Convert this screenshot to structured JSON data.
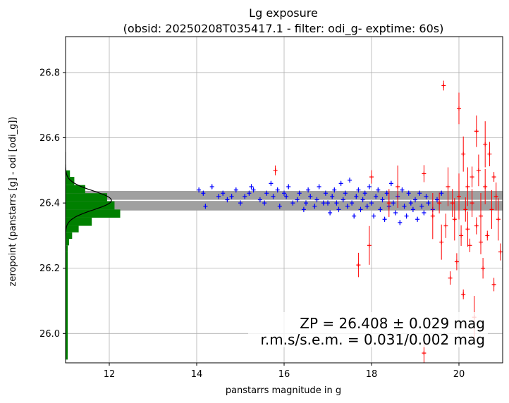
{
  "chart_data": {
    "type": "scatter",
    "title": "Lg exposure",
    "subtitle": "(obsid: 20250208T035417.1 - filter: odi_g- exptime: 60s)",
    "xlabel": "panstarrs magnitude in g",
    "ylabel": "zeropoint (panstarrs [g] - odi [odi_g])",
    "xlim": [
      11.0,
      21.0
    ],
    "ylim": [
      25.91,
      26.91
    ],
    "xticks": [
      "12",
      "14",
      "16",
      "18",
      "20"
    ],
    "xtick_values": [
      12,
      14,
      16,
      18,
      20
    ],
    "yticks": [
      "26.0",
      "26.2",
      "26.4",
      "26.6",
      "26.8"
    ],
    "ytick_values": [
      26.0,
      26.2,
      26.4,
      26.6,
      26.8
    ],
    "grid": true,
    "zeropoint": 26.408,
    "zp_band": [
      26.377,
      26.437
    ],
    "annotation": [
      "ZP = 26.408 ± 0.029 mag",
      "r.m.s/s.e.m. = 0.031/0.002 mag"
    ],
    "colors": {
      "used": "#0000ff",
      "rejected": "#ff0000",
      "histogram": "#008000",
      "band": "#a0a0a0",
      "gaussian": "#000000"
    },
    "histogram": {
      "bin_edges": [
        25.94,
        26.25,
        26.27,
        26.29,
        26.31,
        26.33,
        26.355,
        26.38,
        26.405,
        26.43,
        26.455,
        26.48,
        26.5
      ],
      "counts_mag": [
        11.05,
        11.05,
        11.08,
        11.15,
        11.3,
        11.6,
        12.25,
        12.12,
        11.95,
        11.45,
        11.2,
        11.1
      ]
    },
    "series": [
      {
        "name": "",
        "color": "#0000ff",
        "points": [
          [
            14.05,
            26.44
          ],
          [
            14.15,
            26.43
          ],
          [
            14.2,
            26.39
          ],
          [
            14.35,
            26.45
          ],
          [
            14.5,
            26.42
          ],
          [
            14.6,
            26.43
          ],
          [
            14.7,
            26.41
          ],
          [
            14.8,
            26.42
          ],
          [
            14.9,
            26.44
          ],
          [
            15.0,
            26.4
          ],
          [
            15.1,
            26.42
          ],
          [
            15.2,
            26.43
          ],
          [
            15.25,
            26.45
          ],
          [
            15.3,
            26.44
          ],
          [
            15.45,
            26.41
          ],
          [
            15.55,
            26.4
          ],
          [
            15.6,
            26.43
          ],
          [
            15.7,
            26.46
          ],
          [
            15.75,
            26.42
          ],
          [
            15.85,
            26.44
          ],
          [
            15.9,
            26.39
          ],
          [
            16.0,
            26.43
          ],
          [
            16.05,
            26.42
          ],
          [
            16.1,
            26.45
          ],
          [
            16.2,
            26.4
          ],
          [
            16.3,
            26.41
          ],
          [
            16.35,
            26.43
          ],
          [
            16.45,
            26.38
          ],
          [
            16.5,
            26.4
          ],
          [
            16.55,
            26.44
          ],
          [
            16.6,
            26.42
          ],
          [
            16.7,
            26.39
          ],
          [
            16.75,
            26.41
          ],
          [
            16.8,
            26.45
          ],
          [
            16.9,
            26.4
          ],
          [
            16.95,
            26.43
          ],
          [
            17.0,
            26.4
          ],
          [
            17.05,
            26.37
          ],
          [
            17.1,
            26.42
          ],
          [
            17.15,
            26.44
          ],
          [
            17.2,
            26.4
          ],
          [
            17.25,
            26.38
          ],
          [
            17.3,
            26.46
          ],
          [
            17.35,
            26.41
          ],
          [
            17.4,
            26.43
          ],
          [
            17.45,
            26.39
          ],
          [
            17.5,
            26.47
          ],
          [
            17.55,
            26.4
          ],
          [
            17.6,
            26.36
          ],
          [
            17.65,
            26.42
          ],
          [
            17.7,
            26.44
          ],
          [
            17.75,
            26.38
          ],
          [
            17.8,
            26.41
          ],
          [
            17.85,
            26.43
          ],
          [
            17.9,
            26.39
          ],
          [
            17.95,
            26.45
          ],
          [
            18.0,
            26.4
          ],
          [
            18.05,
            26.36
          ],
          [
            18.1,
            26.42
          ],
          [
            18.15,
            26.44
          ],
          [
            18.2,
            26.38
          ],
          [
            18.25,
            26.41
          ],
          [
            18.3,
            26.35
          ],
          [
            18.35,
            26.43
          ],
          [
            18.4,
            26.39
          ],
          [
            18.45,
            26.46
          ],
          [
            18.5,
            26.4
          ],
          [
            18.55,
            26.37
          ],
          [
            18.6,
            26.42
          ],
          [
            18.65,
            26.34
          ],
          [
            18.7,
            26.44
          ],
          [
            18.75,
            26.39
          ],
          [
            18.8,
            26.36
          ],
          [
            18.85,
            26.43
          ],
          [
            18.9,
            26.4
          ],
          [
            18.95,
            26.38
          ],
          [
            19.0,
            26.41
          ],
          [
            19.05,
            26.35
          ],
          [
            19.1,
            26.43
          ],
          [
            19.15,
            26.39
          ],
          [
            19.2,
            26.37
          ],
          [
            19.25,
            26.42
          ],
          [
            19.3,
            26.4
          ],
          [
            19.4,
            26.38
          ],
          [
            19.5,
            26.41
          ],
          [
            19.6,
            26.43
          ]
        ]
      },
      {
        "name": "",
        "color": "#ff0000",
        "points": [
          [
            15.8,
            26.5
          ],
          [
            17.7,
            26.21
          ],
          [
            17.95,
            26.27
          ],
          [
            18.0,
            26.48
          ],
          [
            18.4,
            26.4
          ],
          [
            18.6,
            26.45
          ],
          [
            19.2,
            26.49
          ],
          [
            19.2,
            25.94
          ],
          [
            19.4,
            26.36
          ],
          [
            19.55,
            26.4
          ],
          [
            19.6,
            26.28
          ],
          [
            19.65,
            26.76
          ],
          [
            19.7,
            26.33
          ],
          [
            19.75,
            26.45
          ],
          [
            19.8,
            26.17
          ],
          [
            19.85,
            26.4
          ],
          [
            19.9,
            26.35
          ],
          [
            19.95,
            26.22
          ],
          [
            20.0,
            26.69
          ],
          [
            20.0,
            26.42
          ],
          [
            20.05,
            26.3
          ],
          [
            20.1,
            26.55
          ],
          [
            20.1,
            26.12
          ],
          [
            20.15,
            26.38
          ],
          [
            20.2,
            26.45
          ],
          [
            20.25,
            26.27
          ],
          [
            20.3,
            26.4
          ],
          [
            20.35,
            26.05
          ],
          [
            20.4,
            26.33
          ],
          [
            20.45,
            26.5
          ],
          [
            20.5,
            26.36
          ],
          [
            20.55,
            26.2
          ],
          [
            20.6,
            26.45
          ],
          [
            20.65,
            26.3
          ],
          [
            20.7,
            26.55
          ],
          [
            20.75,
            26.38
          ],
          [
            20.8,
            26.15
          ],
          [
            20.85,
            26.42
          ],
          [
            20.9,
            26.35
          ],
          [
            20.95,
            26.25
          ],
          [
            20.4,
            26.62
          ],
          [
            20.6,
            26.58
          ],
          [
            20.3,
            26.48
          ],
          [
            20.2,
            26.32
          ],
          [
            20.8,
            26.48
          ],
          [
            20.5,
            26.28
          ]
        ]
      }
    ]
  }
}
